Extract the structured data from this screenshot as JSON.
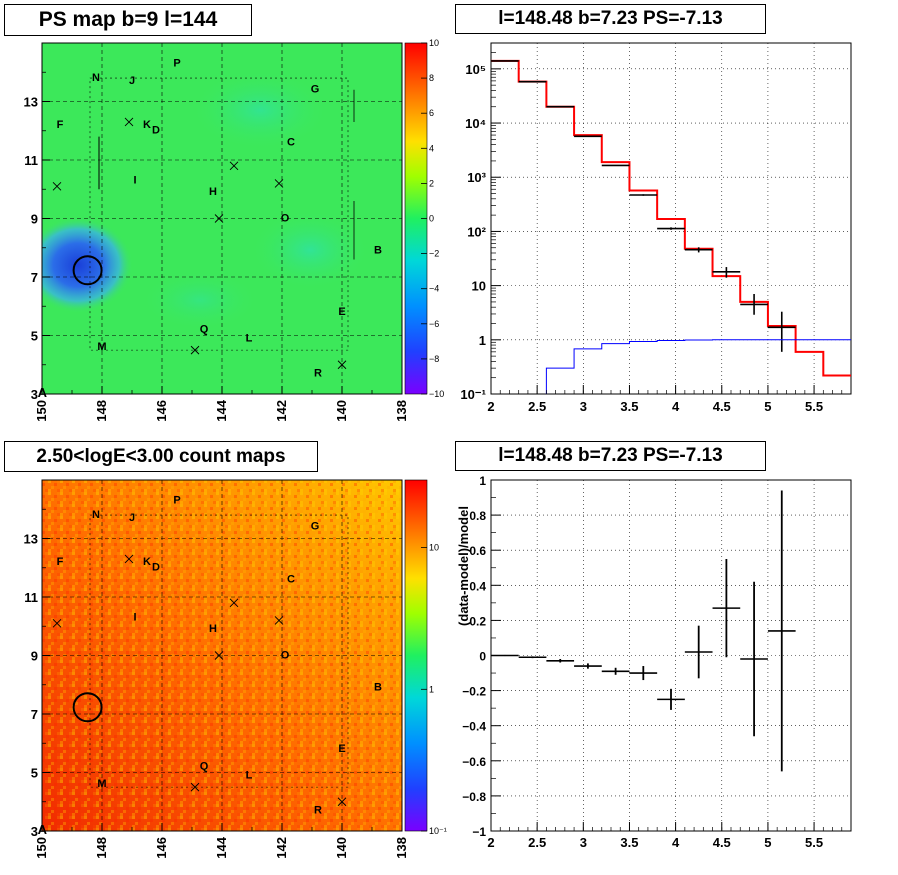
{
  "panels": {
    "ps_map": {
      "title": "PS map b=9 l=144",
      "x_ticks": [
        "150",
        "148",
        "146",
        "144",
        "142",
        "140",
        "138"
      ],
      "y_ticks": [
        "3",
        "5",
        "7",
        "9",
        "11",
        "13"
      ],
      "corner_label": "A",
      "colorbar_ticks": [
        "10",
        "8",
        "6",
        "4",
        "2",
        "0",
        "−2",
        "−4",
        "−6",
        "−8",
        "−10"
      ],
      "source_labels": [
        {
          "text": "N",
          "l": 148.2,
          "b": 13.7
        },
        {
          "text": "J",
          "l": 147.0,
          "b": 13.6
        },
        {
          "text": "P",
          "l": 145.5,
          "b": 14.2
        },
        {
          "text": "G",
          "l": 140.9,
          "b": 13.3
        },
        {
          "text": "F",
          "l": 149.4,
          "b": 12.1
        },
        {
          "text": "K",
          "l": 146.5,
          "b": 12.1
        },
        {
          "text": "D",
          "l": 146.2,
          "b": 11.9
        },
        {
          "text": "C",
          "l": 141.7,
          "b": 11.5
        },
        {
          "text": "I",
          "l": 146.9,
          "b": 10.2
        },
        {
          "text": "H",
          "l": 144.3,
          "b": 9.8
        },
        {
          "text": "O",
          "l": 141.9,
          "b": 8.9
        },
        {
          "text": "B",
          "l": 138.8,
          "b": 7.8
        },
        {
          "text": "E",
          "l": 140.0,
          "b": 5.7
        },
        {
          "text": "Q",
          "l": 144.6,
          "b": 5.1
        },
        {
          "text": "L",
          "l": 143.1,
          "b": 4.8
        },
        {
          "text": "M",
          "l": 148.0,
          "b": 4.5
        },
        {
          "text": "R",
          "l": 140.8,
          "b": 3.6
        }
      ],
      "crosses": [
        {
          "l": 149.5,
          "b": 10.1
        },
        {
          "l": 147.1,
          "b": 12.3
        },
        {
          "l": 143.6,
          "b": 10.8
        },
        {
          "l": 144.1,
          "b": 9.0
        },
        {
          "l": 142.1,
          "b": 10.2
        },
        {
          "l": 144.9,
          "b": 4.5
        },
        {
          "l": 140.0,
          "b": 4.0
        }
      ],
      "circle": {
        "l": 148.48,
        "b": 7.23
      },
      "colors": {
        "field": "#3ce85a",
        "deficit": "#1b4bd8"
      }
    },
    "count_map": {
      "title": "2.50<logE<3.00 count maps",
      "colorbar_ticks": [
        "10",
        "1",
        "10⁻¹"
      ]
    },
    "spectrum": {
      "title": "l=148.48 b=7.23 PS=-7.13",
      "x_ticks": [
        "2",
        "2.5",
        "3",
        "3.5",
        "4",
        "4.5",
        "5",
        "5.5"
      ],
      "y_ticks": [
        "10⁻¹",
        "1",
        "10",
        "10²",
        "10³",
        "10⁴",
        "10⁵"
      ]
    },
    "residual": {
      "title": "l=148.48 b=7.23 PS=-7.13",
      "y_label": "(data-model)/model",
      "x_ticks": [
        "2",
        "2.5",
        "3",
        "3.5",
        "4",
        "4.5",
        "5",
        "5.5"
      ],
      "y_ticks": [
        "−1",
        "−0.8",
        "−0.6",
        "−0.4",
        "−0.2",
        "0",
        "0.2",
        "0.4",
        "0.6",
        "0.8",
        "1"
      ]
    }
  },
  "chart_data": [
    {
      "type": "heatmap",
      "title": "PS map b=9 l=144",
      "x_range": [
        150,
        138
      ],
      "y_range": [
        3,
        15
      ],
      "z_range": [
        -10,
        10
      ],
      "colormap": "rainbow"
    },
    {
      "type": "heatmap",
      "title": "2.50<logE<3.00 count maps",
      "x_range": [
        150,
        138
      ],
      "y_range": [
        3,
        15
      ],
      "z_scale": "log",
      "z_range": [
        0.1,
        30
      ],
      "colormap": "rainbow"
    },
    {
      "type": "line",
      "title": "l=148.48 b=7.23 PS=-7.13",
      "y_scale": "log",
      "xlim": [
        2.0,
        5.9
      ],
      "ylim": [
        0.1,
        300000
      ],
      "series": [
        {
          "style": "histogram",
          "color": "#ff0000",
          "edges": [
            2.0,
            2.3,
            2.6,
            2.9,
            3.2,
            3.5,
            3.8,
            4.1,
            4.4,
            4.7,
            5.0,
            5.3,
            5.6,
            5.9
          ],
          "values": [
            140000,
            58000,
            20000,
            6000,
            1900,
            570,
            170,
            48,
            15,
            5,
            1.8,
            0.6,
            0.22
          ]
        },
        {
          "style": "points",
          "color": "#000000",
          "x": [
            2.15,
            2.45,
            2.75,
            3.05,
            3.35,
            3.65,
            3.95,
            4.25,
            4.55,
            4.85,
            5.15
          ],
          "y": [
            140000,
            58000,
            20000,
            5700,
            1650,
            470,
            113,
            46,
            18,
            4.5,
            1.7
          ],
          "y_low": [
            139000,
            57500,
            19800,
            5600,
            1620,
            455,
            107,
            41,
            14,
            2.9,
            0.6
          ],
          "y_high": [
            141000,
            58500,
            20200,
            5800,
            1680,
            485,
            119,
            51,
            22,
            7,
            3.3
          ]
        },
        {
          "style": "histogram",
          "color": "#0000ff",
          "edges": [
            2.6,
            2.9,
            3.2,
            3.5,
            3.8,
            4.1,
            4.4,
            4.7,
            5.0,
            5.3,
            5.6,
            5.9
          ],
          "values": [
            0.3,
            0.68,
            0.85,
            0.93,
            0.97,
            0.99,
            1.0,
            1.0,
            1.0,
            1.0,
            1.0
          ]
        }
      ]
    },
    {
      "type": "scatter",
      "title": "l=148.48 b=7.23 PS=-7.13",
      "ylabel": "(data-model)/model",
      "xlim": [
        2.0,
        5.9
      ],
      "ylim": [
        -1,
        1
      ],
      "x": [
        2.15,
        2.45,
        2.75,
        3.05,
        3.35,
        3.65,
        3.95,
        4.25,
        4.55,
        4.85,
        5.15
      ],
      "x_halfwidth": 0.15,
      "y": [
        0.0,
        -0.01,
        -0.03,
        -0.06,
        -0.09,
        -0.1,
        -0.25,
        0.02,
        0.27,
        -0.02,
        0.14
      ],
      "y_err": [
        0.003,
        0.005,
        0.01,
        0.015,
        0.02,
        0.04,
        0.06,
        0.15,
        0.28,
        0.44,
        0.8
      ]
    }
  ]
}
